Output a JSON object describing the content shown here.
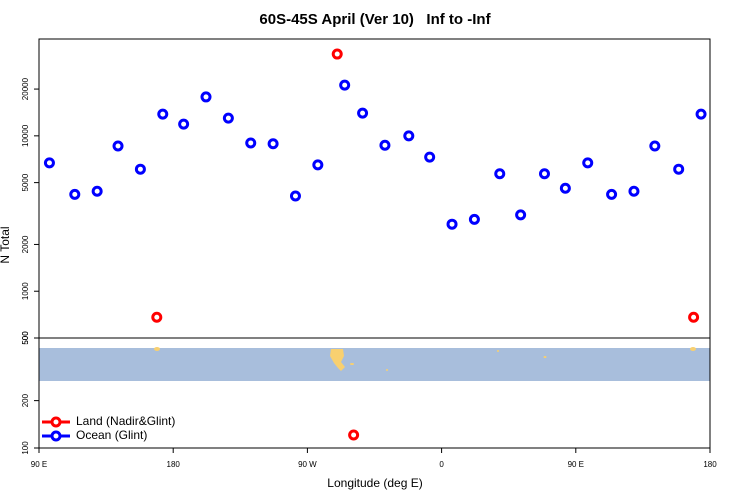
{
  "chart_data": {
    "type": "scatter",
    "title": "60S-45S April (Ver 10)   Inf to -Inf",
    "xlabel": "Longitude (deg E)",
    "ylabel": "N Total",
    "xlim": [
      90,
      540
    ],
    "xticks": [
      {
        "value": 90,
        "label": "90 E"
      },
      {
        "value": 180,
        "label": "180"
      },
      {
        "value": 270,
        "label": "90 W"
      },
      {
        "value": 360,
        "label": "0"
      },
      {
        "value": 450,
        "label": "90 E"
      },
      {
        "value": 540,
        "label": "180"
      }
    ],
    "log_y": true,
    "panels": [
      {
        "ylim": [
          500,
          42000
        ],
        "yticks": [
          500,
          1000,
          2000,
          5000,
          10000,
          20000
        ]
      },
      {
        "ylim": [
          100,
          500
        ],
        "yticks": [
          100,
          200,
          500
        ]
      }
    ],
    "legend": "bottom-left",
    "series": [
      {
        "name": "Land (Nadir&Glint)",
        "color": "#ff0000",
        "x": [
          169,
          290,
          529,
          301
        ],
        "values": [
          680,
          33600,
          680,
          121
        ]
      },
      {
        "name": "Ocean (Glint)",
        "color": "#0000ff",
        "x": [
          97,
          114,
          129,
          143,
          158,
          173,
          187,
          202,
          217,
          232,
          247,
          262,
          277,
          295,
          307,
          322,
          338,
          352,
          367,
          382,
          399,
          413,
          429,
          443,
          458,
          474,
          489,
          503,
          519,
          534
        ],
        "values": [
          6700,
          4200,
          4400,
          8600,
          6100,
          13800,
          11900,
          17800,
          13000,
          9000,
          8900,
          4100,
          6500,
          21200,
          14000,
          8700,
          10000,
          7300,
          2700,
          2900,
          5700,
          3100,
          5700,
          4600,
          6700,
          4200,
          4400,
          8600,
          6100,
          13800
        ]
      }
    ]
  }
}
